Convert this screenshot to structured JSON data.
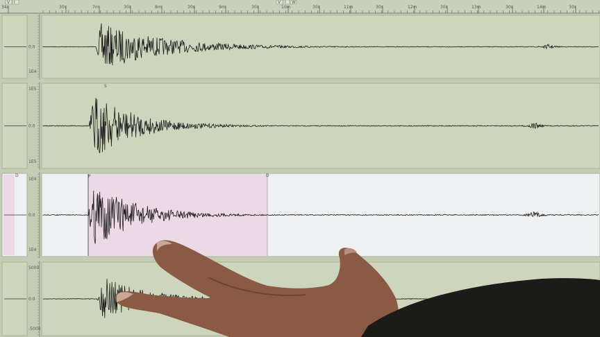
{
  "time_axis": {
    "labels": [
      "34s",
      "30s",
      "7m",
      "30s",
      "8m",
      "30s",
      "9m",
      "30s",
      "10m",
      "30s",
      "11m",
      "30s",
      "12m",
      "30s",
      "13m",
      "30s",
      "14m",
      "30s"
    ]
  },
  "toolbar": {
    "buttons": [
      "V",
      "I",
      "V",
      "I",
      "W"
    ]
  },
  "channels": [
    {
      "top_label": "",
      "zero_label": "0.0",
      "bottom_label": "1E4",
      "marker": "",
      "onset": 138,
      "event2": 790,
      "amp": 0.85,
      "background": "#cdd5bd"
    },
    {
      "top_label": "1E5",
      "zero_label": "0.0",
      "bottom_label": "1E5",
      "marker": "S",
      "onset": 128,
      "event2": 770,
      "amp": 0.9,
      "background": "#cdd5bd"
    },
    {
      "top_label": "1E4",
      "zero_label": "0.0",
      "bottom_label": "1E4",
      "marker": "P",
      "end_marker": "D",
      "onset": 127,
      "event2": 770,
      "amp": 0.95,
      "background": "#eef0f2",
      "highlight": "#ecd9e6"
    },
    {
      "top_label": "5000",
      "zero_label": "0.0",
      "bottom_label": "-5000",
      "marker": "",
      "onset": 140,
      "event2": 0,
      "amp": 0.75,
      "background": "#cdd5bd"
    }
  ],
  "colors": {
    "screen": "#c4ccb4",
    "trace": "#1a1a1a",
    "skin": "#8a5a45",
    "sleeve": "#1b1b1a"
  }
}
